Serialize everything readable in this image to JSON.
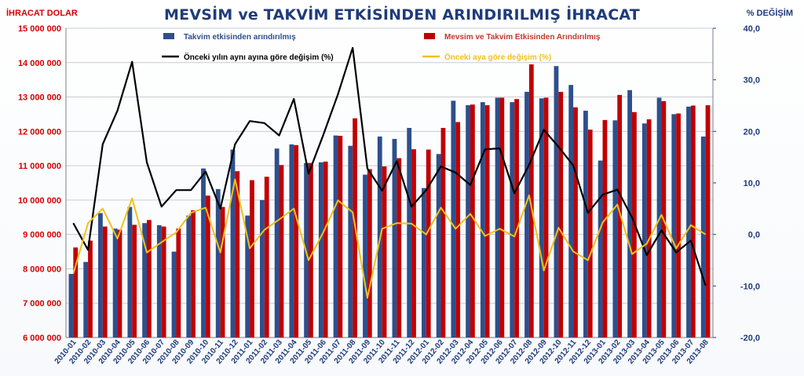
{
  "header": {
    "title": "MEVSİM ve TAKVİM ETKİSİNDEN ARINDIRILMIŞ İHRACAT",
    "left_axis_title": "İHRACAT DOLAR",
    "right_axis_title": "% DEĞİŞİM"
  },
  "colors": {
    "series_blue": "#2e4f8c",
    "series_red": "#c00000",
    "line_black": "#000000",
    "line_yellow": "#f2c11a",
    "left_axis": "#d40000",
    "right_axis": "#1f3b7a",
    "title": "#1f3b7a"
  },
  "chart_data": {
    "type": "bar",
    "categories": [
      "2010-01",
      "2010-02",
      "2010-03",
      "2010-04",
      "2010-05",
      "2010-06",
      "2010-07",
      "2010-08",
      "2010-09",
      "2010-10",
      "2010-11",
      "2010-12",
      "2011-01",
      "2011-02",
      "2011-03",
      "2011-04",
      "2011-05",
      "2011-06",
      "2011-07",
      "2011-08",
      "2011-09",
      "2011-10",
      "2011-11",
      "2011-12",
      "2012-01",
      "2012-02",
      "2012-03",
      "2012-04",
      "2012-05",
      "2012-06",
      "2012-07",
      "2012-08",
      "2012-09",
      "2012-10",
      "2012-11",
      "2012-12",
      "2013-01",
      "2013-02",
      "2013-03",
      "2013-04",
      "2013-05",
      "2013-06",
      "2013-07",
      "2013-08"
    ],
    "y_ticks_left": [
      "6 000 000",
      "7 000 000",
      "8 000 000",
      "9 000 000",
      "10 000 000",
      "11 000 000",
      "12 000 000",
      "13 000 000",
      "14 000 000",
      "15 000 000"
    ],
    "y_ticks_right": [
      "-20,0",
      "-10,0",
      "0,0",
      "10,0",
      "20,0",
      "30,0",
      "40,0"
    ],
    "ylim_left": [
      6000000,
      15000000
    ],
    "ylim_right": [
      -20,
      40
    ],
    "grid": "horizontal",
    "legend_position": "top",
    "series": [
      {
        "name": "Takvim etkisinden arındırılmış",
        "kind": "bar",
        "axis": "left",
        "values": [
          7850000,
          8200000,
          9620000,
          9170000,
          9800000,
          9330000,
          9270000,
          8500000,
          9550000,
          10920000,
          10320000,
          11470000,
          9550000,
          10000000,
          11500000,
          11620000,
          11080000,
          11100000,
          11880000,
          11580000,
          10740000,
          11850000,
          11780000,
          12100000,
          10350000,
          11340000,
          12890000,
          12760000,
          12850000,
          12980000,
          12850000,
          13150000,
          12960000,
          13900000,
          13350000,
          12600000,
          11150000,
          12320000,
          13200000,
          12230000,
          12980000,
          12500000,
          12720000,
          11850000
        ]
      },
      {
        "name": "Mevsim ve Takvim Etkisinden Arındırılmış",
        "kind": "bar",
        "axis": "left",
        "values": [
          8620000,
          8820000,
          9230000,
          9140000,
          9280000,
          9420000,
          9230000,
          9170000,
          9700000,
          10130000,
          9800000,
          10840000,
          10580000,
          10680000,
          11020000,
          11600000,
          11080000,
          11120000,
          11870000,
          12380000,
          10900000,
          10980000,
          11220000,
          11480000,
          11470000,
          12100000,
          12270000,
          12780000,
          12760000,
          12980000,
          12940000,
          13950000,
          12980000,
          13150000,
          12700000,
          12050000,
          12330000,
          13060000,
          12560000,
          12350000,
          12880000,
          12520000,
          12750000,
          12760000
        ]
      },
      {
        "name": "Önceki yılın aynı ayına göre değişim (%)",
        "kind": "line",
        "axis": "right",
        "values": [
          2.2,
          -3.0,
          17.5,
          24.0,
          33.5,
          14.0,
          5.4,
          8.6,
          8.6,
          12.2,
          5.0,
          17.5,
          22.0,
          21.6,
          19.2,
          26.3,
          11.8,
          19.3,
          27.2,
          36.2,
          12.8,
          8.5,
          14.2,
          5.4,
          8.6,
          13.2,
          12.0,
          9.6,
          16.5,
          16.7,
          8.0,
          13.5,
          20.3,
          17.0,
          13.4,
          4.2,
          7.7,
          8.7,
          3.3,
          -4.0,
          0.8,
          -3.5,
          -1.2,
          -9.9
        ]
      },
      {
        "name": "Önceki aya göre değişim (%)",
        "kind": "line",
        "axis": "right",
        "values": [
          -7.6,
          2.2,
          5.0,
          -0.8,
          7.0,
          -3.5,
          -1.5,
          0.4,
          4.2,
          5.2,
          -3.5,
          10.7,
          -2.7,
          0.9,
          2.9,
          5.0,
          -5.0,
          0.4,
          6.6,
          4.3,
          -12.3,
          1.1,
          2.2,
          2.1,
          0.0,
          5.2,
          1.1,
          4.0,
          -0.3,
          1.1,
          -0.4,
          7.6,
          -7.0,
          1.3,
          -3.3,
          -5.0,
          2.3,
          5.8,
          -3.8,
          -1.8,
          3.8,
          -2.7,
          1.8,
          0.0
        ]
      }
    ]
  }
}
